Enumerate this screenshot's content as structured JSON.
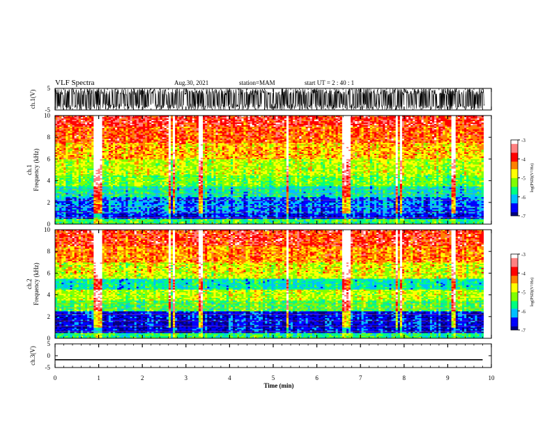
{
  "header": {
    "title": "VLF Spectra",
    "date": "Aug.30, 2021",
    "station": "station=MAM",
    "start": "start  UT =   2 : 40 : 1"
  },
  "chart_data": [
    {
      "type": "line",
      "name": "panel-ch1-waveform",
      "ylabel": "ch.1(V)",
      "xlim": [
        0,
        10
      ],
      "ylim": [
        -5,
        5
      ],
      "yticks": [
        "5",
        "-5"
      ],
      "note": "dense black waveform, noisy amplitude approx -3..3 V"
    },
    {
      "type": "heatmap",
      "name": "panel-ch1-spectrogram",
      "ylabel": "ch.1\nFrequency (kHz)",
      "xlim": [
        0,
        10
      ],
      "ylim": [
        0,
        10
      ],
      "yticks": [
        "0",
        "2",
        "4",
        "6",
        "8",
        "10"
      ],
      "colorbar": {
        "label": "log(PSD)(V²/Hz)",
        "range": [
          -7,
          -3
        ],
        "ticks": [
          "-3",
          "-4",
          "-5",
          "-6",
          "-7"
        ],
        "colormap": [
          "#00007f",
          "#0000ff",
          "#00bfff",
          "#00ff80",
          "#80ff00",
          "#ffff00",
          "#ff8000",
          "#ff0000",
          "#ff8080",
          "#ffffff"
        ]
      },
      "bands_khz_to_log_psd": [
        {
          "f": [
            0,
            0.5
          ],
          "v": -5.5
        },
        {
          "f": [
            0.5,
            1.0
          ],
          "v": -6.6
        },
        {
          "f": [
            1.0,
            2.5
          ],
          "v": -6.3
        },
        {
          "f": [
            2.5,
            3.5
          ],
          "v": -5.8
        },
        {
          "f": [
            3.5,
            4.5
          ],
          "v": -5.3
        },
        {
          "f": [
            4.5,
            6.0
          ],
          "v": -5.0
        },
        {
          "f": [
            6.0,
            7.5
          ],
          "v": -4.6
        },
        {
          "f": [
            7.5,
            9.0
          ],
          "v": -4.2
        },
        {
          "f": [
            9.0,
            10.0
          ],
          "v": -3.9
        }
      ],
      "spike_times_min": [
        0.9,
        1.0,
        2.6,
        2.7,
        3.3,
        5.3,
        6.6,
        6.7,
        7.8,
        7.9,
        9.1
      ]
    },
    {
      "type": "heatmap",
      "name": "panel-ch2-spectrogram",
      "ylabel": "ch.2\nFrequency (kHz)",
      "xlim": [
        0,
        10
      ],
      "ylim": [
        0,
        10
      ],
      "yticks": [
        "0",
        "2",
        "4",
        "6",
        "8",
        "10"
      ],
      "colorbar": {
        "label": "log(PSD)(V²/Hz)",
        "range": [
          -7,
          -3
        ],
        "ticks": [
          "-3",
          "-4",
          "-5",
          "-6",
          "-7"
        ],
        "colormap": [
          "#00007f",
          "#0000ff",
          "#00bfff",
          "#00ff80",
          "#80ff00",
          "#ffff00",
          "#ff8000",
          "#ff0000",
          "#ff8080",
          "#ffffff"
        ]
      },
      "bands_khz_to_log_psd": [
        {
          "f": [
            0,
            0.5
          ],
          "v": -5.6
        },
        {
          "f": [
            0.5,
            2.5
          ],
          "v": -6.6
        },
        {
          "f": [
            2.5,
            3.5
          ],
          "v": -5.4
        },
        {
          "f": [
            3.5,
            4.5
          ],
          "v": -5.0
        },
        {
          "f": [
            4.5,
            5.5
          ],
          "v": -5.8
        },
        {
          "f": [
            5.5,
            7.0
          ],
          "v": -4.9
        },
        {
          "f": [
            7.0,
            8.5
          ],
          "v": -4.4
        },
        {
          "f": [
            8.5,
            10.0
          ],
          "v": -4.0
        }
      ],
      "spike_times_min": [
        0.9,
        1.0,
        2.6,
        2.7,
        3.3,
        5.3,
        6.6,
        6.7,
        7.8,
        7.9,
        9.1
      ]
    },
    {
      "type": "line",
      "name": "panel-ch3-waveform",
      "ylabel": "ch.3(V)",
      "xlim": [
        0,
        10
      ],
      "ylim": [
        -5,
        5
      ],
      "yticks": [
        "5",
        "0",
        "-5"
      ],
      "x": [
        0,
        9.8
      ],
      "y": [
        -1.7,
        -1.7
      ]
    }
  ],
  "xaxis": {
    "label": "Time (min)",
    "ticks": [
      "0",
      "1",
      "2",
      "3",
      "4",
      "5",
      "6",
      "7",
      "8",
      "9",
      "10"
    ],
    "range": [
      0,
      10
    ]
  }
}
